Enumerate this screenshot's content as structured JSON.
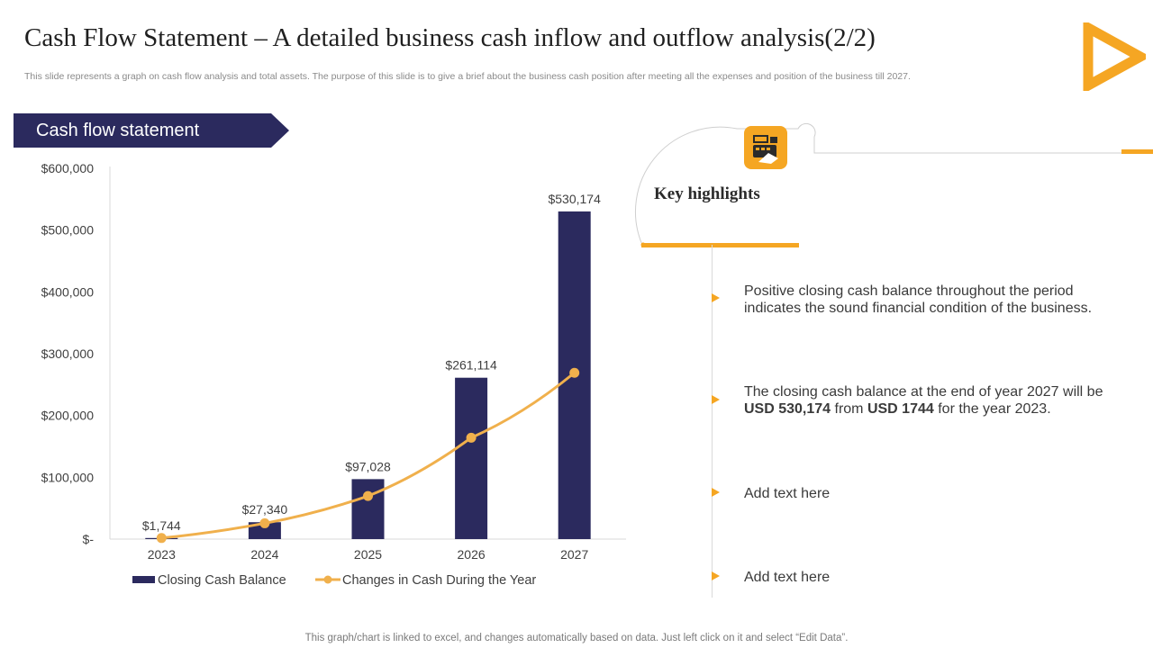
{
  "header": {
    "title": "Cash Flow Statement – A detailed business cash inflow and outflow analysis(2/2)",
    "subtitle": "This slide represents a graph on cash flow analysis and total assets. The purpose of this slide is to give a brief about the business cash position after meeting all the expenses and position of the business till 2027."
  },
  "banner": {
    "label": "Cash flow statement"
  },
  "chart_data": {
    "type": "bar",
    "title": "",
    "xlabel": "",
    "ylabel": "",
    "categories": [
      "2023",
      "2024",
      "2025",
      "2026",
      "2027"
    ],
    "ylim": [
      0,
      600000
    ],
    "yticks": [
      0,
      100000,
      200000,
      300000,
      400000,
      500000,
      600000
    ],
    "ytick_labels": [
      "$-",
      "$100,000",
      "$200,000",
      "$300,000",
      "$400,000",
      "$500,000",
      "$600,000"
    ],
    "series": [
      {
        "name": "Closing Cash Balance",
        "type": "bar",
        "values": [
          1744,
          27340,
          97028,
          261114,
          530174
        ],
        "labels": [
          "$1,744",
          "$27,340",
          "$97,028",
          "$261,114",
          "$530,174"
        ],
        "color": "#2b2a5e"
      },
      {
        "name": "Changes in Cash During the Year",
        "type": "line",
        "values": [
          1744,
          25596,
          69688,
          164086,
          269060
        ],
        "color": "#f0b04c"
      }
    ],
    "legend": "bottom",
    "grid": false
  },
  "highlights": {
    "title": "Key highlights",
    "items": [
      {
        "text": "Positive closing cash balance throughout the period indicates the sound financial condition of the business."
      },
      {
        "pre": "The closing cash balance at the end of year 2027 will be ",
        "bold1": "USD 530,174",
        "mid": " from ",
        "bold2": "USD 1744",
        "post": " for the year 2023."
      },
      {
        "text": "Add text here"
      },
      {
        "text": "Add text here"
      }
    ]
  },
  "footer": {
    "note": "This graph/chart is linked to excel, and changes automatically based on data. Just left click on it and select “Edit Data”."
  },
  "colors": {
    "navy": "#2b2a5e",
    "accent": "#f5a623",
    "line": "#f0b04c"
  }
}
